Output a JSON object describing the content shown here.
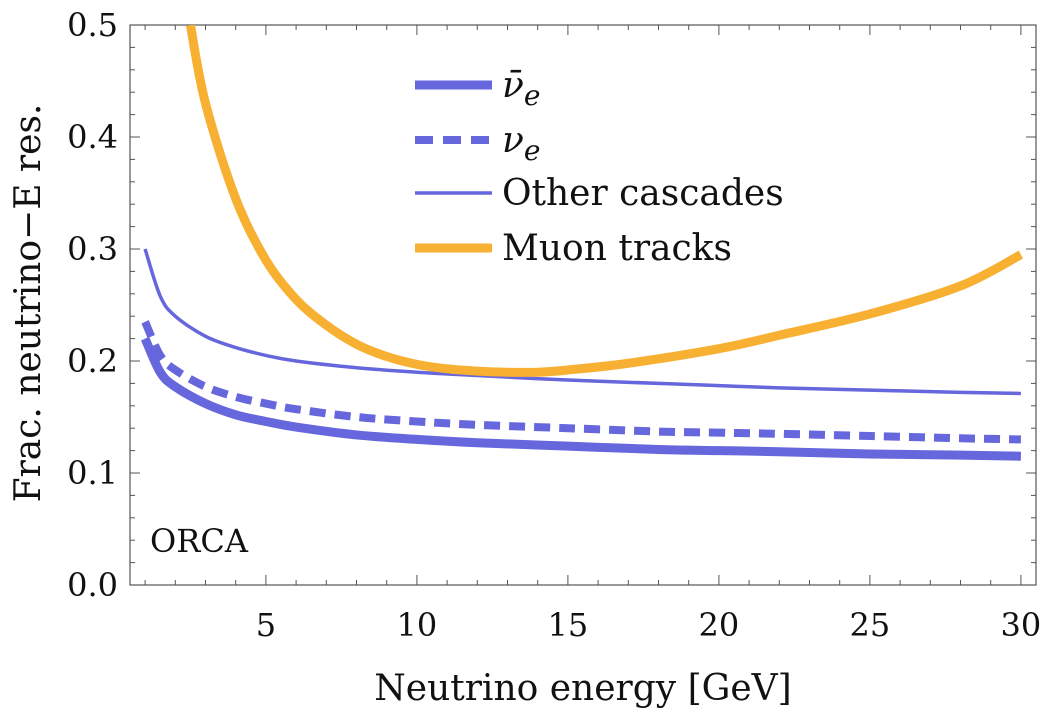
{
  "chart_data": {
    "type": "line",
    "title": "",
    "xlabel": "Neutrino energy [GeV]",
    "ylabel": "Frac. neutrino−E res.",
    "xlim": [
      0.5,
      30.5
    ],
    "ylim": [
      0.0,
      0.5
    ],
    "xticks": [
      5,
      10,
      15,
      20,
      25,
      30
    ],
    "xtick_labels": [
      "5",
      "10",
      "15",
      "20",
      "25",
      "30"
    ],
    "yticks": [
      0.0,
      0.1,
      0.2,
      0.3,
      0.4,
      0.5
    ],
    "ytick_labels": [
      "0.0",
      "0.1",
      "0.2",
      "0.3",
      "0.4",
      "0.5"
    ],
    "annotation": "ORCA",
    "legend_position": "top-center",
    "series": [
      {
        "name": "anti-nu-e",
        "label_main": "ν̄",
        "label_sub": "e",
        "color": "#6666dd",
        "style": "solid-thick",
        "x": [
          1,
          1.5,
          2,
          3,
          4,
          5,
          6,
          8,
          10,
          12,
          15,
          18,
          20,
          22,
          25,
          28,
          30
        ],
        "y": [
          0.22,
          0.19,
          0.177,
          0.162,
          0.152,
          0.146,
          0.141,
          0.134,
          0.13,
          0.127,
          0.124,
          0.121,
          0.12,
          0.119,
          0.117,
          0.116,
          0.115
        ]
      },
      {
        "name": "nu-e",
        "label_main": "ν",
        "label_sub": "e",
        "color": "#6666dd",
        "style": "dashed-thick",
        "x": [
          1,
          1.5,
          2,
          3,
          4,
          5,
          6,
          8,
          10,
          12,
          15,
          18,
          20,
          22,
          25,
          28,
          30
        ],
        "y": [
          0.235,
          0.205,
          0.192,
          0.177,
          0.168,
          0.162,
          0.157,
          0.15,
          0.146,
          0.143,
          0.14,
          0.137,
          0.136,
          0.135,
          0.133,
          0.131,
          0.13
        ]
      },
      {
        "name": "other-cascades",
        "label_main": "Other cascades",
        "label_sub": "",
        "color": "#6666dd",
        "style": "solid-thin",
        "x": [
          1,
          1.5,
          2,
          3,
          4,
          5,
          6,
          8,
          10,
          12,
          15,
          18,
          20,
          22,
          25,
          28,
          30
        ],
        "y": [
          0.3,
          0.258,
          0.24,
          0.222,
          0.212,
          0.205,
          0.2,
          0.194,
          0.19,
          0.187,
          0.183,
          0.18,
          0.178,
          0.176,
          0.174,
          0.172,
          0.171
        ]
      },
      {
        "name": "muon-tracks",
        "label_main": "Muon tracks",
        "label_sub": "",
        "color": "#f7b032",
        "style": "solid-thick",
        "x": [
          2.5,
          3,
          4,
          5,
          6,
          7,
          8,
          9,
          10,
          11,
          12,
          13,
          14,
          15,
          17,
          20,
          22,
          25,
          28,
          30
        ],
        "y": [
          0.5,
          0.43,
          0.345,
          0.29,
          0.255,
          0.232,
          0.215,
          0.204,
          0.197,
          0.193,
          0.191,
          0.19,
          0.19,
          0.192,
          0.198,
          0.211,
          0.223,
          0.242,
          0.267,
          0.295
        ]
      }
    ]
  }
}
